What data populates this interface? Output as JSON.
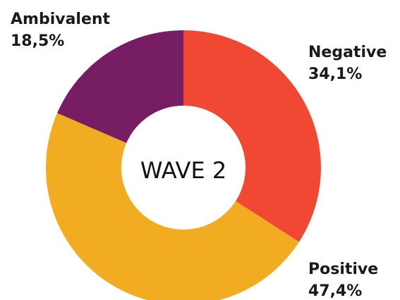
{
  "chart_data": {
    "type": "donut",
    "center_label": "WAVE 2",
    "categories": [
      "Negative",
      "Positive",
      "Ambivalent"
    ],
    "values": [
      34.1,
      47.4,
      18.5
    ],
    "value_labels": [
      "34,1%",
      "47,4%",
      "18,5%"
    ],
    "colors": [
      "#f04832",
      "#f2ac22",
      "#761d64"
    ]
  }
}
